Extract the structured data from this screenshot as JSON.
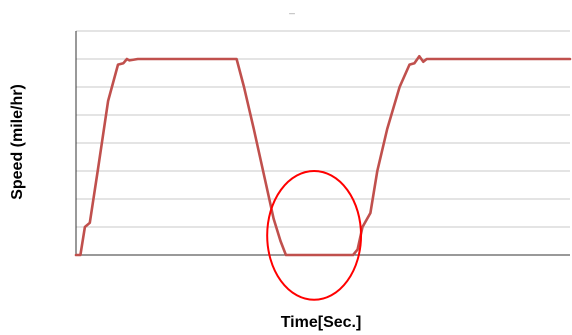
{
  "chart_data": {
    "type": "line",
    "title": "_",
    "xlabel": "Time[Sec.]",
    "ylabel": "Speed (mile/hr)",
    "xlim": [
      0,
      100
    ],
    "ylim": [
      0,
      8
    ],
    "grid": {
      "horizontal": true,
      "vertical": false,
      "lines": 8
    },
    "legend": "none",
    "series": [
      {
        "color": "#c0504d",
        "x": [
          0,
          0.9,
          1.8,
          2.8,
          4.4,
          6.5,
          8.5,
          9.6,
          10.3,
          10.8,
          12.5,
          17.5,
          25.0,
          30.0,
          32.5,
          34.0,
          36.0,
          38.5,
          40.0,
          41.4,
          42.5,
          48.0,
          55.0,
          56.1,
          57.0,
          58.0,
          59.6,
          61.0,
          63.0,
          65.5,
          67.5,
          68.5,
          69.5,
          70.3,
          71.0,
          72.5,
          80.0,
          90.0,
          100.0
        ],
        "y": [
          0,
          0,
          1.0,
          1.15,
          3.0,
          5.5,
          6.8,
          6.85,
          7.0,
          6.95,
          7.0,
          7.0,
          7.0,
          7.0,
          7.0,
          6.0,
          4.5,
          2.5,
          1.3,
          0.5,
          0,
          0,
          0,
          0,
          0.2,
          1.0,
          1.5,
          3.0,
          4.5,
          6.0,
          6.8,
          6.85,
          7.1,
          6.9,
          7.0,
          7.0,
          7.0,
          7.0,
          7.0
        ]
      }
    ],
    "annotations": [
      {
        "type": "circle",
        "x": 48.2,
        "y": 0.7,
        "rx": 9.5,
        "ry": 2.3,
        "color": "#ff0000"
      }
    ]
  }
}
